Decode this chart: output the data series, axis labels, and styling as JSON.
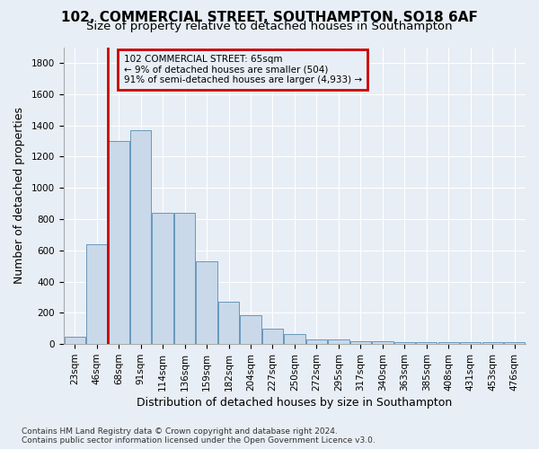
{
  "title_line1": "102, COMMERCIAL STREET, SOUTHAMPTON, SO18 6AF",
  "title_line2": "Size of property relative to detached houses in Southampton",
  "xlabel": "Distribution of detached houses by size in Southampton",
  "ylabel": "Number of detached properties",
  "footnote": "Contains HM Land Registry data © Crown copyright and database right 2024.\nContains public sector information licensed under the Open Government Licence v3.0.",
  "annotation_title": "102 COMMERCIAL STREET: 65sqm",
  "annotation_line2": "← 9% of detached houses are smaller (504)",
  "annotation_line3": "91% of semi-detached houses are larger (4,933) →",
  "bar_color": "#c9d9ea",
  "bar_edge_color": "#6699bb",
  "highlight_color": "#cc0000",
  "background_color": "#e8eef5",
  "categories": [
    "23sqm",
    "46sqm",
    "68sqm",
    "91sqm",
    "114sqm",
    "136sqm",
    "159sqm",
    "182sqm",
    "204sqm",
    "227sqm",
    "250sqm",
    "272sqm",
    "295sqm",
    "317sqm",
    "340sqm",
    "363sqm",
    "385sqm",
    "408sqm",
    "431sqm",
    "453sqm",
    "476sqm"
  ],
  "values": [
    50,
    640,
    1300,
    1370,
    840,
    840,
    530,
    270,
    185,
    100,
    65,
    30,
    30,
    20,
    20,
    15,
    15,
    10,
    10,
    10,
    10
  ],
  "ylim": [
    0,
    1900
  ],
  "yticks": [
    0,
    200,
    400,
    600,
    800,
    1000,
    1200,
    1400,
    1600,
    1800
  ],
  "title_fontsize": 11,
  "subtitle_fontsize": 9.5,
  "axis_label_fontsize": 9,
  "tick_fontsize": 7.5,
  "footnote_fontsize": 6.5
}
